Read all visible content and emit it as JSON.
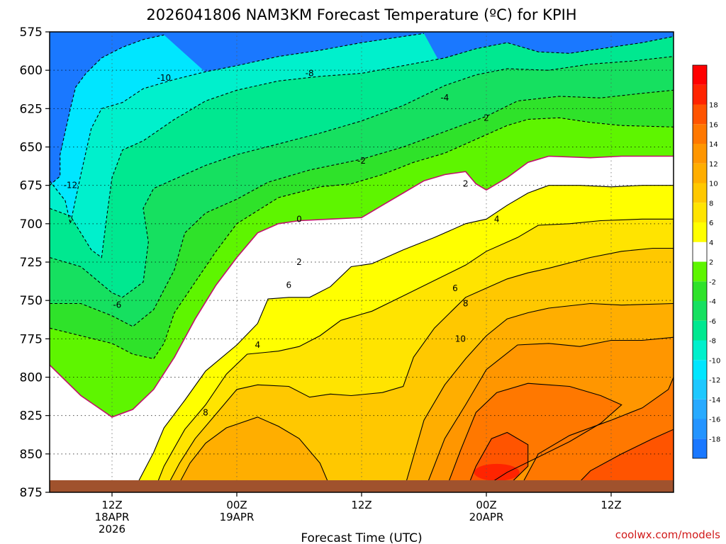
{
  "chart_data": {
    "type": "heatmap",
    "title": "2026041806 NAM3KM Forecast Temperature (ºC) for KPIH",
    "xlabel": "Forecast Time (UTC)",
    "ylabel": "",
    "credit": "coolwx.com/models",
    "y_axis": {
      "name": "pressure",
      "range": [
        875,
        575
      ],
      "ticks": [
        "575",
        "600",
        "625",
        "650",
        "675",
        "700",
        "725",
        "750",
        "775",
        "800",
        "825",
        "850",
        "875"
      ]
    },
    "x_axis": {
      "range_hours": [
        0,
        60
      ],
      "ticks": [
        {
          "hour": 6,
          "lines": [
            "12Z",
            "18APR",
            "2026"
          ]
        },
        {
          "hour": 18,
          "lines": [
            "00Z",
            "19APR"
          ]
        },
        {
          "hour": 30,
          "lines": [
            "12Z"
          ]
        },
        {
          "hour": 42,
          "lines": [
            "00Z",
            "20APR"
          ]
        },
        {
          "hour": 54,
          "lines": [
            "12Z"
          ]
        }
      ]
    },
    "colorbar": {
      "levels": [
        -20,
        -18,
        -16,
        -14,
        -12,
        -10,
        -8,
        -6,
        -4,
        -2,
        2,
        4,
        6,
        8,
        10,
        12,
        14,
        16,
        18,
        20
      ],
      "tick_labels": [
        "-18",
        "-16",
        "-14",
        "-12",
        "-10",
        "-8",
        "-6",
        "-4",
        "-2",
        "2",
        "4",
        "6",
        "8",
        "10",
        "12",
        "14",
        "16",
        "18"
      ],
      "colors": [
        "#1a78ff",
        "#2494ff",
        "#28aaff",
        "#1ec8ff",
        "#00e6ff",
        "#00f0cc",
        "#00e890",
        "#16e060",
        "#2fe22a",
        "#5ef500",
        "#ffffff",
        "#ffff00",
        "#ffe400",
        "#ffc800",
        "#ffae00",
        "#ff9600",
        "#ff7800",
        "#ff5400",
        "#ff2400",
        "#ff0000"
      ]
    },
    "contour_labels": [
      "-12",
      "-10",
      "-8",
      "-6",
      "-4",
      "-2",
      "0",
      "2",
      "2",
      "4",
      "4",
      "6",
      "6",
      "8",
      "8",
      "10",
      "2"
    ],
    "series": [
      {
        "name": "0",
        "points": [
          [
            0,
            792
          ],
          [
            3,
            812
          ],
          [
            6,
            826
          ],
          [
            8,
            821
          ],
          [
            10,
            808
          ],
          [
            12,
            787
          ],
          [
            14,
            762
          ],
          [
            16,
            740
          ],
          [
            18,
            722
          ],
          [
            20,
            706
          ],
          [
            22,
            700
          ],
          [
            24,
            698
          ],
          [
            27,
            697
          ],
          [
            30,
            696
          ],
          [
            32,
            688
          ],
          [
            34,
            680
          ],
          [
            36,
            672
          ],
          [
            38,
            668
          ],
          [
            40,
            666
          ],
          [
            41,
            674
          ],
          [
            42,
            678
          ],
          [
            44,
            670
          ],
          [
            46,
            660
          ],
          [
            48,
            656
          ],
          [
            52,
            657
          ],
          [
            55,
            656
          ],
          [
            60,
            656
          ]
        ]
      },
      {
        "name": "-2",
        "points": [
          [
            0,
            768
          ],
          [
            6,
            778
          ],
          [
            8,
            785
          ],
          [
            10,
            788
          ],
          [
            11,
            778
          ],
          [
            12,
            758
          ],
          [
            14,
            738
          ],
          [
            16,
            718
          ],
          [
            18,
            700
          ],
          [
            22,
            683
          ],
          [
            26,
            676
          ],
          [
            29,
            674
          ],
          [
            32,
            668
          ],
          [
            35,
            660
          ],
          [
            38,
            654
          ],
          [
            40,
            648
          ],
          [
            42,
            642
          ],
          [
            44,
            636
          ],
          [
            46,
            632
          ],
          [
            49,
            631
          ],
          [
            52,
            634
          ],
          [
            55,
            636
          ],
          [
            60,
            637
          ]
        ]
      },
      {
        "name": "-4",
        "points": [
          [
            0,
            752
          ],
          [
            3,
            752
          ],
          [
            6,
            760
          ],
          [
            8,
            767
          ],
          [
            10,
            756
          ],
          [
            12,
            730
          ],
          [
            13,
            706
          ],
          [
            15,
            693
          ],
          [
            18,
            684
          ],
          [
            21,
            673
          ],
          [
            25,
            665
          ],
          [
            30,
            658
          ],
          [
            34,
            650
          ],
          [
            38,
            640
          ],
          [
            42,
            630
          ],
          [
            45,
            620
          ],
          [
            49,
            617
          ],
          [
            53,
            618
          ],
          [
            57,
            615
          ],
          [
            60,
            613
          ]
        ]
      },
      {
        "name": "-6",
        "points": [
          [
            0,
            722
          ],
          [
            3,
            728
          ],
          [
            6,
            745
          ],
          [
            7,
            748
          ],
          [
            9,
            738
          ],
          [
            9.5,
            712
          ],
          [
            9,
            690
          ],
          [
            10,
            677
          ],
          [
            12,
            671
          ],
          [
            15,
            662
          ],
          [
            18,
            655
          ],
          [
            22,
            648
          ],
          [
            26,
            641
          ],
          [
            30,
            633
          ],
          [
            34,
            623
          ],
          [
            38,
            610
          ],
          [
            41,
            603
          ],
          [
            44,
            599
          ],
          [
            48,
            600
          ],
          [
            52,
            596
          ],
          [
            56,
            594
          ],
          [
            60,
            591
          ]
        ]
      },
      {
        "name": "-8",
        "points": [
          [
            0,
            690
          ],
          [
            2,
            695
          ],
          [
            4,
            717
          ],
          [
            5,
            722
          ],
          [
            5.5,
            695
          ],
          [
            6,
            670
          ],
          [
            7,
            652
          ],
          [
            9,
            646
          ],
          [
            12,
            632
          ],
          [
            15,
            620
          ],
          [
            18,
            613
          ],
          [
            22,
            607
          ],
          [
            26,
            604
          ],
          [
            30,
            602
          ],
          [
            34,
            597
          ],
          [
            38,
            592
          ],
          [
            41,
            586
          ],
          [
            44,
            582
          ],
          [
            47,
            588
          ],
          [
            50,
            589
          ],
          [
            53,
            586
          ],
          [
            57,
            582
          ],
          [
            60,
            578
          ]
        ]
      },
      {
        "name": "-10",
        "points": [
          [
            0,
            672
          ],
          [
            1.5,
            685
          ],
          [
            2,
            700
          ],
          [
            3,
            668
          ],
          [
            4,
            638
          ],
          [
            5,
            625
          ],
          [
            7,
            621
          ],
          [
            9,
            612
          ],
          [
            12,
            606
          ],
          [
            15,
            601
          ],
          [
            18,
            597
          ],
          [
            22,
            591
          ],
          [
            26,
            587
          ],
          [
            30,
            582
          ],
          [
            34,
            578
          ],
          [
            36,
            576
          ]
        ]
      },
      {
        "name": "-12",
        "points": [
          [
            0,
            675
          ],
          [
            1,
            669
          ],
          [
            1,
            655
          ],
          [
            1.5,
            640
          ],
          [
            2,
            625
          ],
          [
            2.5,
            611
          ],
          [
            3.5,
            602
          ],
          [
            5,
            592
          ],
          [
            7,
            585
          ],
          [
            9,
            580
          ],
          [
            11,
            577
          ]
        ]
      },
      {
        "name": "2",
        "points": [
          [
            8,
            875
          ],
          [
            9,
            862
          ],
          [
            10,
            849
          ],
          [
            11,
            833
          ],
          [
            13,
            815
          ],
          [
            15,
            796
          ],
          [
            18,
            779
          ],
          [
            20,
            765
          ],
          [
            21,
            749
          ],
          [
            23,
            748
          ],
          [
            25,
            748
          ],
          [
            27,
            741
          ],
          [
            29,
            728
          ],
          [
            31,
            726
          ],
          [
            34,
            717
          ],
          [
            37,
            709
          ],
          [
            40,
            700
          ],
          [
            42,
            697
          ],
          [
            44,
            688
          ],
          [
            46,
            680
          ],
          [
            48,
            675
          ],
          [
            51,
            675
          ],
          [
            54,
            676
          ],
          [
            57,
            675
          ],
          [
            60,
            675
          ]
        ]
      },
      {
        "name": "4",
        "points": [
          [
            10,
            875
          ],
          [
            11,
            858
          ],
          [
            13,
            834
          ],
          [
            15,
            818
          ],
          [
            17,
            798
          ],
          [
            19,
            785
          ],
          [
            22,
            783
          ],
          [
            24,
            780
          ],
          [
            26,
            773
          ],
          [
            28,
            763
          ],
          [
            31,
            757
          ],
          [
            34,
            747
          ],
          [
            37,
            737
          ],
          [
            40,
            727
          ],
          [
            42,
            718
          ],
          [
            45,
            709
          ],
          [
            47,
            701
          ],
          [
            50,
            700
          ],
          [
            53,
            698
          ],
          [
            57,
            697
          ],
          [
            60,
            697
          ]
        ]
      },
      {
        "name": "6",
        "points": [
          [
            11,
            875
          ],
          [
            12.5,
            856
          ],
          [
            14,
            840
          ],
          [
            16,
            824
          ],
          [
            18,
            808
          ],
          [
            20,
            805
          ],
          [
            23,
            806
          ],
          [
            25,
            813
          ],
          [
            27,
            811
          ],
          [
            29,
            812
          ],
          [
            32,
            810
          ],
          [
            34,
            806
          ],
          [
            35,
            787
          ],
          [
            37,
            768
          ],
          [
            40,
            748
          ],
          [
            42,
            742
          ],
          [
            44,
            736
          ],
          [
            46,
            732
          ],
          [
            48,
            729
          ],
          [
            52,
            722
          ],
          [
            55,
            718
          ],
          [
            58,
            716
          ],
          [
            60,
            716
          ]
        ]
      },
      {
        "name": "8",
        "points": [
          [
            12,
            875
          ],
          [
            13.5,
            856
          ],
          [
            15,
            843
          ],
          [
            17,
            833
          ],
          [
            20,
            826
          ],
          [
            22,
            832
          ],
          [
            24,
            840
          ],
          [
            26,
            856
          ],
          [
            27,
            872
          ],
          [
            28,
            875
          ]
        ]
      },
      {
        "name": "8",
        "points": [
          [
            34,
            875
          ],
          [
            36,
            828
          ],
          [
            38,
            805
          ],
          [
            40,
            788
          ],
          [
            42,
            773
          ],
          [
            44,
            762
          ],
          [
            46,
            758
          ],
          [
            48,
            755
          ],
          [
            52,
            752
          ],
          [
            55,
            753
          ],
          [
            60,
            752
          ]
        ]
      },
      {
        "name": "10",
        "points": [
          [
            36,
            875
          ],
          [
            38,
            840
          ],
          [
            40,
            818
          ],
          [
            42,
            795
          ],
          [
            45,
            779
          ],
          [
            48,
            778
          ],
          [
            51,
            780
          ],
          [
            54,
            776
          ],
          [
            57,
            776
          ],
          [
            60,
            774
          ]
        ]
      },
      {
        "name": "12",
        "points": [
          [
            38,
            875
          ],
          [
            39.5,
            848
          ],
          [
            41,
            823
          ],
          [
            43,
            810
          ],
          [
            46,
            804
          ],
          [
            50,
            806
          ],
          [
            53,
            812
          ],
          [
            55,
            818
          ],
          [
            53,
            830
          ],
          [
            50,
            842
          ],
          [
            47,
            852
          ],
          [
            44,
            862
          ],
          [
            41,
            875
          ]
        ]
      },
      {
        "name": "12",
        "points": [
          [
            45,
            875
          ],
          [
            47,
            850
          ],
          [
            50,
            838
          ],
          [
            54,
            828
          ],
          [
            57,
            820
          ],
          [
            59.5,
            808
          ],
          [
            60,
            800
          ]
        ]
      },
      {
        "name": "14",
        "points": [
          [
            40,
            875
          ],
          [
            41,
            858
          ],
          [
            42.5,
            840
          ],
          [
            44,
            836
          ],
          [
            46,
            844
          ],
          [
            46,
            858
          ],
          [
            44.5,
            868
          ],
          [
            43,
            875
          ]
        ]
      },
      {
        "name": "14",
        "points": [
          [
            50,
            875
          ],
          [
            52,
            861
          ],
          [
            55,
            850
          ],
          [
            58,
            840
          ],
          [
            60,
            834
          ]
        ]
      }
    ]
  }
}
